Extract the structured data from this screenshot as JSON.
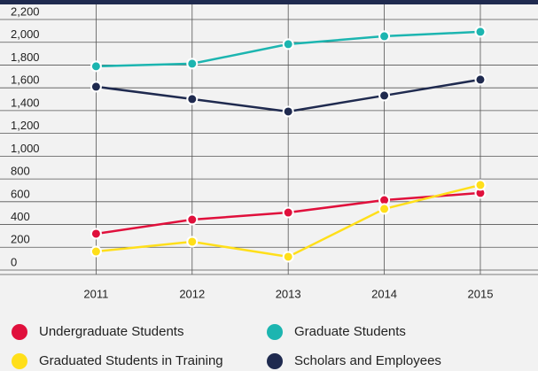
{
  "chart_data": {
    "type": "line",
    "x": [
      2011,
      2012,
      2013,
      2014,
      2015
    ],
    "series": [
      {
        "name": "Undergraduate Students",
        "color": "#e0103c",
        "values": [
          319,
          443,
          505,
          614,
          677
        ]
      },
      {
        "name": "Graduate Students",
        "color": "#1cb5b0",
        "values": [
          1789,
          1812,
          1983,
          2053,
          2092
        ]
      },
      {
        "name": "Graduated Students in Training",
        "color": "#ffdf1a",
        "values": [
          163,
          249,
          117,
          537,
          747
        ]
      },
      {
        "name": "Scholars and Employees",
        "color": "#1f2a4f",
        "values": [
          1610,
          1501,
          1392,
          1532,
          1672
        ]
      }
    ],
    "xlim": [
      2010,
      2015.6
    ],
    "ylim": [
      0,
      2200
    ],
    "yticks": [
      0,
      200,
      400,
      600,
      800,
      {
        "value": 1000,
        "label": "1,000"
      },
      {
        "value": 1200,
        "label": "1,200"
      },
      {
        "value": 1400,
        "label": "1,400"
      },
      {
        "value": 1600,
        "label": "1,600"
      },
      {
        "value": 1800,
        "label": "1,800"
      },
      {
        "value": 2000,
        "label": "2,000"
      },
      {
        "value": 2200,
        "label": "2,200"
      }
    ],
    "grid": true
  }
}
